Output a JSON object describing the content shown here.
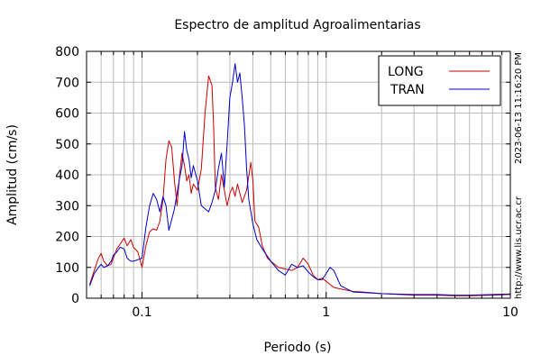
{
  "chart_data": {
    "type": "line",
    "title": "Espectro de amplitud Agroalimentarias",
    "xlabel": "Periodo (s)",
    "ylabel": "Amplitud (cm/s)",
    "x_scale": "log",
    "xlim": [
      0.05,
      10
    ],
    "ylim": [
      0,
      800
    ],
    "grid": true,
    "legend_position": "top-right",
    "x_ticks": [
      {
        "value": 0.1,
        "label": "0.1"
      },
      {
        "value": 1,
        "label": "1"
      },
      {
        "value": 10,
        "label": "10"
      }
    ],
    "y_ticks": [
      {
        "value": 0,
        "label": "0"
      },
      {
        "value": 100,
        "label": "100"
      },
      {
        "value": 200,
        "label": "200"
      },
      {
        "value": 300,
        "label": "300"
      },
      {
        "value": 400,
        "label": "400"
      },
      {
        "value": 500,
        "label": "500"
      },
      {
        "value": 600,
        "label": "600"
      },
      {
        "value": 700,
        "label": "700"
      },
      {
        "value": 800,
        "label": "800"
      }
    ],
    "side_annotations": [
      "2023-06-13 11:16:20 PM",
      "http://www.lis.ucr.ac.cr"
    ],
    "series": [
      {
        "name": "LONG",
        "color": "#cc0000",
        "points": [
          [
            0.052,
            45
          ],
          [
            0.055,
            90
          ],
          [
            0.058,
            130
          ],
          [
            0.06,
            145
          ],
          [
            0.062,
            120
          ],
          [
            0.065,
            105
          ],
          [
            0.068,
            110
          ],
          [
            0.07,
            130
          ],
          [
            0.073,
            160
          ],
          [
            0.076,
            175
          ],
          [
            0.08,
            195
          ],
          [
            0.083,
            170
          ],
          [
            0.087,
            190
          ],
          [
            0.09,
            165
          ],
          [
            0.095,
            150
          ],
          [
            0.1,
            100
          ],
          [
            0.105,
            170
          ],
          [
            0.11,
            215
          ],
          [
            0.115,
            225
          ],
          [
            0.12,
            220
          ],
          [
            0.125,
            250
          ],
          [
            0.13,
            320
          ],
          [
            0.135,
            450
          ],
          [
            0.14,
            510
          ],
          [
            0.145,
            490
          ],
          [
            0.15,
            380
          ],
          [
            0.155,
            300
          ],
          [
            0.16,
            400
          ],
          [
            0.165,
            470
          ],
          [
            0.17,
            430
          ],
          [
            0.175,
            380
          ],
          [
            0.18,
            400
          ],
          [
            0.185,
            340
          ],
          [
            0.19,
            370
          ],
          [
            0.2,
            350
          ],
          [
            0.21,
            420
          ],
          [
            0.22,
            600
          ],
          [
            0.23,
            720
          ],
          [
            0.24,
            690
          ],
          [
            0.245,
            550
          ],
          [
            0.25,
            360
          ],
          [
            0.26,
            320
          ],
          [
            0.27,
            400
          ],
          [
            0.28,
            350
          ],
          [
            0.29,
            300
          ],
          [
            0.3,
            340
          ],
          [
            0.31,
            360
          ],
          [
            0.32,
            330
          ],
          [
            0.33,
            370
          ],
          [
            0.35,
            310
          ],
          [
            0.37,
            350
          ],
          [
            0.39,
            440
          ],
          [
            0.4,
            380
          ],
          [
            0.41,
            250
          ],
          [
            0.43,
            230
          ],
          [
            0.45,
            170
          ],
          [
            0.48,
            130
          ],
          [
            0.5,
            120
          ],
          [
            0.55,
            100
          ],
          [
            0.6,
            95
          ],
          [
            0.65,
            90
          ],
          [
            0.7,
            100
          ],
          [
            0.75,
            130
          ],
          [
            0.8,
            110
          ],
          [
            0.85,
            75
          ],
          [
            0.9,
            60
          ],
          [
            0.95,
            65
          ],
          [
            1.0,
            55
          ],
          [
            1.1,
            35
          ],
          [
            1.2,
            30
          ],
          [
            1.4,
            22
          ],
          [
            1.6,
            20
          ],
          [
            2.0,
            15
          ],
          [
            3.0,
            10
          ],
          [
            4.0,
            10
          ],
          [
            5.0,
            8
          ],
          [
            6.0,
            8
          ],
          [
            8.0,
            10
          ],
          [
            10.0,
            12
          ]
        ]
      },
      {
        "name": "TRAN",
        "color": "#0000cc",
        "points": [
          [
            0.052,
            40
          ],
          [
            0.055,
            80
          ],
          [
            0.058,
            100
          ],
          [
            0.06,
            110
          ],
          [
            0.062,
            100
          ],
          [
            0.065,
            105
          ],
          [
            0.068,
            120
          ],
          [
            0.07,
            140
          ],
          [
            0.073,
            150
          ],
          [
            0.076,
            165
          ],
          [
            0.08,
            160
          ],
          [
            0.083,
            130
          ],
          [
            0.087,
            120
          ],
          [
            0.09,
            120
          ],
          [
            0.095,
            125
          ],
          [
            0.1,
            130
          ],
          [
            0.105,
            230
          ],
          [
            0.11,
            300
          ],
          [
            0.115,
            340
          ],
          [
            0.12,
            320
          ],
          [
            0.125,
            280
          ],
          [
            0.13,
            330
          ],
          [
            0.135,
            300
          ],
          [
            0.14,
            220
          ],
          [
            0.15,
            290
          ],
          [
            0.16,
            390
          ],
          [
            0.165,
            430
          ],
          [
            0.17,
            540
          ],
          [
            0.175,
            480
          ],
          [
            0.18,
            450
          ],
          [
            0.185,
            390
          ],
          [
            0.19,
            430
          ],
          [
            0.2,
            380
          ],
          [
            0.21,
            300
          ],
          [
            0.22,
            290
          ],
          [
            0.23,
            280
          ],
          [
            0.24,
            310
          ],
          [
            0.25,
            350
          ],
          [
            0.26,
            420
          ],
          [
            0.27,
            470
          ],
          [
            0.28,
            360
          ],
          [
            0.29,
            500
          ],
          [
            0.3,
            650
          ],
          [
            0.31,
            700
          ],
          [
            0.32,
            760
          ],
          [
            0.33,
            700
          ],
          [
            0.34,
            730
          ],
          [
            0.35,
            650
          ],
          [
            0.36,
            560
          ],
          [
            0.37,
            420
          ],
          [
            0.38,
            320
          ],
          [
            0.4,
            240
          ],
          [
            0.42,
            190
          ],
          [
            0.45,
            160
          ],
          [
            0.5,
            120
          ],
          [
            0.55,
            90
          ],
          [
            0.6,
            75
          ],
          [
            0.65,
            110
          ],
          [
            0.7,
            100
          ],
          [
            0.75,
            105
          ],
          [
            0.8,
            85
          ],
          [
            0.85,
            70
          ],
          [
            0.9,
            60
          ],
          [
            0.95,
            60
          ],
          [
            1.0,
            80
          ],
          [
            1.05,
            100
          ],
          [
            1.1,
            90
          ],
          [
            1.2,
            40
          ],
          [
            1.4,
            20
          ],
          [
            1.6,
            18
          ],
          [
            2.0,
            15
          ],
          [
            3.0,
            12
          ],
          [
            4.0,
            12
          ],
          [
            5.0,
            10
          ],
          [
            6.0,
            10
          ],
          [
            8.0,
            12
          ],
          [
            10.0,
            14
          ]
        ]
      }
    ]
  }
}
